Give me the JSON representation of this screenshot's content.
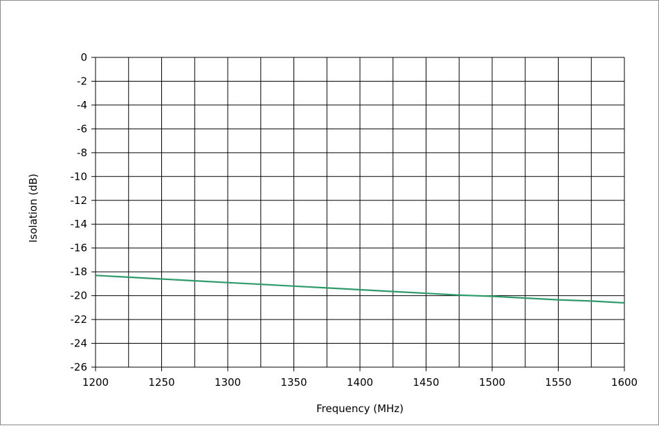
{
  "chart_data": {
    "type": "line",
    "title": "",
    "xlabel": "Frequency (MHz)",
    "ylabel": "Isolation (dB)",
    "xlim": [
      1200,
      1600
    ],
    "ylim": [
      -26,
      0
    ],
    "x_ticks": [
      1200,
      1250,
      1300,
      1350,
      1400,
      1450,
      1500,
      1550,
      1600
    ],
    "y_ticks": [
      0,
      -2,
      -4,
      -6,
      -8,
      -10,
      -12,
      -14,
      -16,
      -18,
      -20,
      -22,
      -24,
      -26
    ],
    "x_tick_labels": [
      "1200",
      "1250",
      "1300",
      "1350",
      "1400",
      "1450",
      "1500",
      "1550",
      "1600"
    ],
    "y_tick_labels": [
      "0",
      "-2",
      "-4",
      "-6",
      "-8",
      "-10",
      "-12",
      "-14",
      "-16",
      "-18",
      "-20",
      "-22",
      "-24",
      "-26"
    ],
    "grid": true,
    "legend": "none",
    "series": [
      {
        "color": "#2e9a6a",
        "x": [
          1200,
          1225,
          1250,
          1275,
          1300,
          1325,
          1350,
          1375,
          1400,
          1425,
          1450,
          1475,
          1500,
          1525,
          1550,
          1575,
          1600
        ],
        "y": [
          -18.3,
          -18.45,
          -18.6,
          -18.75,
          -18.9,
          -19.05,
          -19.2,
          -19.35,
          -19.5,
          -19.65,
          -19.8,
          -19.95,
          -20.05,
          -20.2,
          -20.35,
          -20.45,
          -20.6
        ]
      }
    ]
  }
}
